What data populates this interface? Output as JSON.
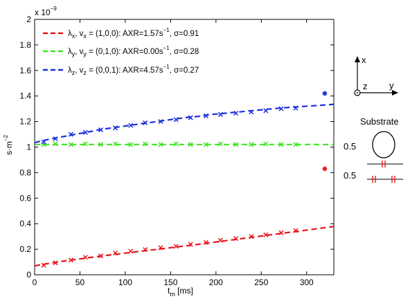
{
  "chart_data": {
    "type": "line",
    "xlabel": "t",
    "xlabel_sub": "m",
    "xlabel_unit": " [ms]",
    "ylabel": "s·m",
    "ylabel_sup": "−2",
    "y_exponent_base": "x 10",
    "y_exponent_power": "−9",
    "xlim": [
      0,
      330
    ],
    "ylim": [
      0,
      2e-09
    ],
    "x_ticks": [
      0,
      50,
      100,
      150,
      200,
      250,
      300
    ],
    "x_tick_labels": [
      "0",
      "50",
      "100",
      "150",
      "200",
      "250",
      "300"
    ],
    "y_ticks": [
      0,
      2e-10,
      4e-10,
      6e-10,
      8e-10,
      1e-09,
      1.2e-09,
      1.4e-09,
      1.6e-09,
      1.8e-09,
      2e-09
    ],
    "y_tick_labels": [
      "0",
      "0.2",
      "0.4",
      "0.6",
      "0.8",
      "1",
      "1.2",
      "1.4",
      "1.6",
      "1.8",
      "2"
    ],
    "grid": false,
    "legend_position": "top-left",
    "series": [
      {
        "color": "#e8141b",
        "legend": {
          "lambda_sub": "x",
          "v_sub": "x",
          "vector": " = (1,0,0): AXR=1.57s",
          "power": "−1",
          "sigma": ", σ=0.91"
        },
        "fit": {
          "x": [
            0,
            15,
            30,
            45,
            60,
            75,
            90,
            105,
            120,
            135,
            150,
            165,
            180,
            195,
            210,
            225,
            240,
            255,
            270,
            285,
            300,
            315,
            330
          ],
          "y": [
            7e-11,
            8.8e-11,
            1.05e-10,
            1.2e-10,
            1.34e-10,
            1.48e-10,
            1.61e-10,
            1.74e-10,
            1.87e-10,
            1.99e-10,
            2.12e-10,
            2.25e-10,
            2.38e-10,
            2.52e-10,
            2.66e-10,
            2.8e-10,
            2.94e-10,
            3.08e-10,
            3.22e-10,
            3.36e-10,
            3.5e-10,
            3.64e-10,
            3.78e-10
          ]
        },
        "samples": {
          "x": [
            10,
            23,
            40,
            56,
            73,
            89,
            106,
            122,
            139,
            156,
            172,
            189,
            205,
            222,
            239,
            255,
            272,
            288
          ],
          "y": [
            7.5e-11,
            9.3e-11,
            1.15e-10,
            1.37e-10,
            1.48e-10,
            1.7e-10,
            1.85e-10,
            1.97e-10,
            2.12e-10,
            2.23e-10,
            2.38e-10,
            2.53e-10,
            2.7e-10,
            2.84e-10,
            3e-10,
            3.13e-10,
            3.29e-10,
            3.46e-10
          ]
        },
        "marker_point": {
          "x": 320,
          "y": 8.3e-10
        }
      },
      {
        "color": "#3ee421",
        "legend": {
          "lambda_sub": "y",
          "v_sub": "y",
          "vector": " = (0,1,0): AXR=0.00s",
          "power": "−1",
          "sigma": ", σ=0.28"
        },
        "fit": {
          "x": [
            0,
            330
          ],
          "y": [
            1.02e-09,
            1.02e-09
          ]
        },
        "samples": {
          "x": [
            10,
            23,
            40,
            56,
            73,
            89,
            106,
            122,
            139,
            156,
            172,
            189,
            205,
            222,
            239,
            255,
            272,
            288
          ],
          "y": [
            1.02e-09,
            1.025e-09,
            1.02e-09,
            1.025e-09,
            1.02e-09,
            1.025e-09,
            1.02e-09,
            1.025e-09,
            1.02e-09,
            1.025e-09,
            1.02e-09,
            1.02e-09,
            1.025e-09,
            1.02e-09,
            1.02e-09,
            1.025e-09,
            1.02e-09,
            1.02e-09
          ]
        }
      },
      {
        "color": "#1a2ee0",
        "legend": {
          "lambda_sub": "z",
          "v_sub": "z",
          "vector": " = (0,0,1): AXR=4.57s",
          "power": "−1",
          "sigma": ", σ=0.27"
        },
        "fit": {
          "x": [
            0,
            15,
            30,
            45,
            60,
            75,
            90,
            105,
            120,
            135,
            150,
            165,
            180,
            195,
            210,
            225,
            240,
            255,
            270,
            285,
            300,
            315,
            330
          ],
          "y": [
            1.035e-09,
            1.06e-09,
            1.08e-09,
            1.1e-09,
            1.12e-09,
            1.14e-09,
            1.155e-09,
            1.17e-09,
            1.185e-09,
            1.2e-09,
            1.215e-09,
            1.23e-09,
            1.24e-09,
            1.255e-09,
            1.265e-09,
            1.275e-09,
            1.285e-09,
            1.295e-09,
            1.305e-09,
            1.313e-09,
            1.32e-09,
            1.327e-09,
            1.335e-09
          ]
        },
        "samples": {
          "x": [
            10,
            23,
            40,
            56,
            73,
            89,
            106,
            122,
            139,
            156,
            172,
            189,
            205,
            222,
            239,
            255,
            272,
            288
          ],
          "y": [
            1.04e-09,
            1.065e-09,
            1.1e-09,
            1.115e-09,
            1.135e-09,
            1.15e-09,
            1.17e-09,
            1.19e-09,
            1.2e-09,
            1.215e-09,
            1.23e-09,
            1.245e-09,
            1.255e-09,
            1.265e-09,
            1.275e-09,
            1.285e-09,
            1.3e-09,
            1.305e-09
          ]
        },
        "marker_point": {
          "x": 320,
          "y": 1.42e-09
        }
      }
    ]
  },
  "inset": {
    "axis_x": "x",
    "axis_y": "y",
    "axis_z": "z",
    "substrate_label": "Substrate",
    "circle_value": "0.5",
    "line_value": "0.5",
    "line_color_top": "#555555",
    "line_color_bottom": "#555555",
    "tick_color": "#e8141b"
  }
}
